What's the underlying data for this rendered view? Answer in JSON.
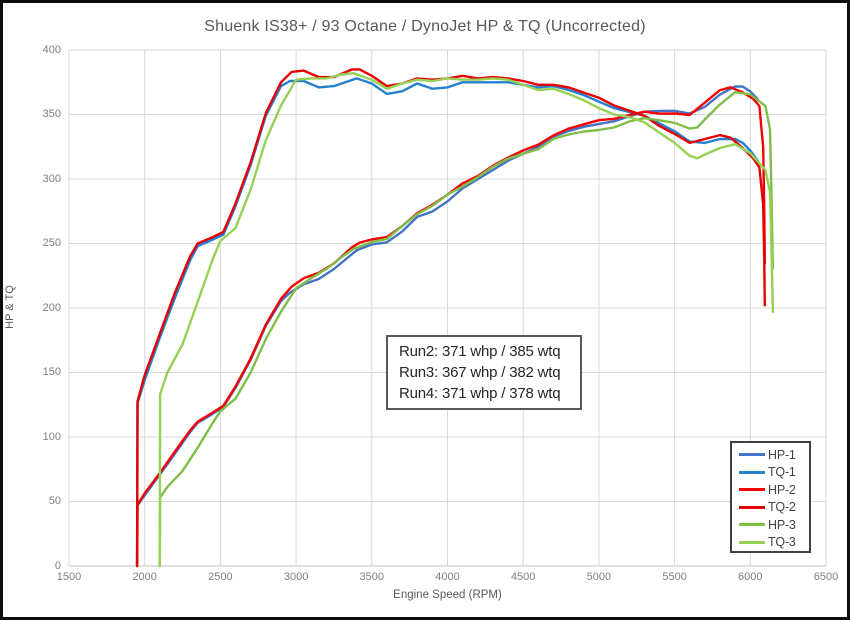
{
  "chart_data": {
    "type": "line",
    "title": "Shuenk IS38+ / 93 Octane / DynoJet HP & TQ (Uncorrected)",
    "xlabel": "Engine Speed (RPM)",
    "ylabel": "HP & TQ",
    "xlim": [
      1500,
      6500
    ],
    "ylim": [
      0,
      400
    ],
    "x_ticks": [
      1500,
      2000,
      2500,
      3000,
      3500,
      4000,
      4500,
      5000,
      5500,
      6000,
      6500
    ],
    "y_ticks": [
      0,
      50,
      100,
      150,
      200,
      250,
      300,
      350,
      400
    ],
    "grid": true,
    "grid_color": "#d9d9d9",
    "axis_line_color": "#c0c0c0",
    "legend_position": "inside-bottom-right",
    "annotations": [
      "Run2: 371 whp / 385 wtq",
      "Run3: 367 whp / 382 wtq",
      "Run4: 371 whp / 378 wtq"
    ],
    "series": [
      {
        "name": "HP-1",
        "color": "#4472C4",
        "points": [
          [
            1950,
            0
          ],
          [
            1952,
            46.8
          ],
          [
            2000,
            54.8
          ],
          [
            2100,
            70.8
          ],
          [
            2200,
            87.1
          ],
          [
            2300,
            103.8
          ],
          [
            2350,
            111.0
          ],
          [
            2450,
            118.0
          ],
          [
            2520,
            123.3
          ],
          [
            2600,
            138.1
          ],
          [
            2700,
            159.9
          ],
          [
            2800,
            186.1
          ],
          [
            2900,
            205.4
          ],
          [
            2960,
            211.9
          ],
          [
            3050,
            218.4
          ],
          [
            3150,
            222.5
          ],
          [
            3250,
            230.2
          ],
          [
            3400,
            244.7
          ],
          [
            3500,
            249.2
          ],
          [
            3600,
            250.9
          ],
          [
            3700,
            259.3
          ],
          [
            3800,
            270.6
          ],
          [
            3900,
            274.8
          ],
          [
            4000,
            282.6
          ],
          [
            4100,
            292.7
          ],
          [
            4200,
            299.9
          ],
          [
            4300,
            307.0
          ],
          [
            4400,
            314.2
          ],
          [
            4500,
            319.6
          ],
          [
            4600,
            325.0
          ],
          [
            4700,
            332.9
          ],
          [
            4800,
            337.2
          ],
          [
            4900,
            340.5
          ],
          [
            5000,
            342.7
          ],
          [
            5100,
            344.7
          ],
          [
            5200,
            348.5
          ],
          [
            5300,
            352.2
          ],
          [
            5400,
            352.7
          ],
          [
            5500,
            352.9
          ],
          [
            5600,
            350.8
          ],
          [
            5700,
            356.0
          ],
          [
            5800,
            365.5
          ],
          [
            5900,
            371.8
          ],
          [
            5950,
            371.6
          ],
          [
            6000,
            367.9
          ],
          [
            6050,
            361.7
          ]
        ]
      },
      {
        "name": "TQ-1",
        "color": "#2581CE",
        "points": [
          [
            1950,
            0
          ],
          [
            1952,
            126
          ],
          [
            2000,
            144
          ],
          [
            2100,
            177
          ],
          [
            2200,
            208
          ],
          [
            2300,
            237
          ],
          [
            2350,
            248
          ],
          [
            2450,
            253
          ],
          [
            2520,
            257
          ],
          [
            2600,
            279
          ],
          [
            2700,
            311
          ],
          [
            2800,
            349
          ],
          [
            2900,
            372
          ],
          [
            2960,
            376
          ],
          [
            3050,
            376
          ],
          [
            3150,
            371
          ],
          [
            3250,
            372
          ],
          [
            3400,
            378
          ],
          [
            3500,
            374
          ],
          [
            3600,
            366
          ],
          [
            3700,
            368
          ],
          [
            3800,
            374
          ],
          [
            3900,
            370
          ],
          [
            4000,
            371
          ],
          [
            4100,
            375
          ],
          [
            4200,
            375
          ],
          [
            4300,
            375
          ],
          [
            4400,
            375
          ],
          [
            4500,
            373
          ],
          [
            4600,
            371
          ],
          [
            4700,
            372
          ],
          [
            4800,
            369
          ],
          [
            4900,
            365
          ],
          [
            5000,
            360
          ],
          [
            5100,
            355
          ],
          [
            5200,
            352
          ],
          [
            5300,
            349
          ],
          [
            5400,
            343
          ],
          [
            5500,
            337
          ],
          [
            5600,
            329
          ],
          [
            5700,
            328
          ],
          [
            5800,
            331
          ],
          [
            5900,
            331
          ],
          [
            5950,
            328
          ],
          [
            6000,
            322
          ],
          [
            6050,
            314
          ]
        ]
      },
      {
        "name": "HP-2",
        "color": "#F60000",
        "points": [
          [
            1950,
            0
          ],
          [
            1953,
            47.6
          ],
          [
            2000,
            56.4
          ],
          [
            2100,
            72.0
          ],
          [
            2200,
            88.8
          ],
          [
            2300,
            105.1
          ],
          [
            2350,
            111.9
          ],
          [
            2450,
            119.0
          ],
          [
            2520,
            124.3
          ],
          [
            2600,
            139.1
          ],
          [
            2700,
            160.9
          ],
          [
            2800,
            187.1
          ],
          [
            2900,
            207.1
          ],
          [
            2970,
            216.6
          ],
          [
            3050,
            223.0
          ],
          [
            3150,
            227.3
          ],
          [
            3250,
            234.5
          ],
          [
            3370,
            247.1
          ],
          [
            3420,
            250.7
          ],
          [
            3500,
            253.2
          ],
          [
            3600,
            255.0
          ],
          [
            3700,
            263.5
          ],
          [
            3800,
            273.5
          ],
          [
            3900,
            280.0
          ],
          [
            4000,
            287.9
          ],
          [
            4100,
            296.6
          ],
          [
            4200,
            302.3
          ],
          [
            4300,
            310.3
          ],
          [
            4400,
            316.7
          ],
          [
            4500,
            322.2
          ],
          [
            4600,
            326.7
          ],
          [
            4700,
            333.8
          ],
          [
            4800,
            339.1
          ],
          [
            4900,
            342.4
          ],
          [
            5000,
            345.6
          ],
          [
            5100,
            346.7
          ],
          [
            5200,
            349.5
          ],
          [
            5300,
            352.2
          ],
          [
            5400,
            350.6
          ],
          [
            5500,
            350.8
          ],
          [
            5600,
            349.7
          ],
          [
            5700,
            359.2
          ],
          [
            5800,
            368.9
          ],
          [
            5870,
            371.1
          ],
          [
            5950,
            367.1
          ],
          [
            6020,
            362.2
          ],
          [
            6060,
            356.5
          ],
          [
            6085,
            324.4
          ],
          [
            6092,
            278.4
          ],
          [
            6096,
            234.5
          ]
        ]
      },
      {
        "name": "TQ-2",
        "color": "#E60000",
        "points": [
          [
            1950,
            0
          ],
          [
            1953,
            128
          ],
          [
            2000,
            148
          ],
          [
            2100,
            180
          ],
          [
            2200,
            212
          ],
          [
            2300,
            240
          ],
          [
            2350,
            250
          ],
          [
            2450,
            255
          ],
          [
            2520,
            259
          ],
          [
            2600,
            281
          ],
          [
            2700,
            313
          ],
          [
            2800,
            351
          ],
          [
            2900,
            375
          ],
          [
            2970,
            383
          ],
          [
            3050,
            384
          ],
          [
            3150,
            379
          ],
          [
            3250,
            379
          ],
          [
            3370,
            385
          ],
          [
            3420,
            385
          ],
          [
            3500,
            380
          ],
          [
            3600,
            372
          ],
          [
            3700,
            374
          ],
          [
            3800,
            378
          ],
          [
            3900,
            377
          ],
          [
            4000,
            378
          ],
          [
            4100,
            380
          ],
          [
            4200,
            378
          ],
          [
            4300,
            379
          ],
          [
            4400,
            378
          ],
          [
            4500,
            376
          ],
          [
            4600,
            373
          ],
          [
            4700,
            373
          ],
          [
            4800,
            371
          ],
          [
            4900,
            367
          ],
          [
            5000,
            363
          ],
          [
            5100,
            357
          ],
          [
            5200,
            353
          ],
          [
            5300,
            349
          ],
          [
            5400,
            341
          ],
          [
            5500,
            335
          ],
          [
            5600,
            328
          ],
          [
            5700,
            331
          ],
          [
            5800,
            334
          ],
          [
            5870,
            332
          ],
          [
            5950,
            324
          ],
          [
            6020,
            316
          ],
          [
            6060,
            309
          ],
          [
            6085,
            280
          ],
          [
            6092,
            240
          ],
          [
            6096,
            202
          ]
        ]
      },
      {
        "name": "HP-3",
        "color": "#7FBE48",
        "points": [
          [
            2100,
            0
          ],
          [
            2102,
            53.2
          ],
          [
            2150,
            61.4
          ],
          [
            2250,
            73.7
          ],
          [
            2350,
            91.7
          ],
          [
            2450,
            111.0
          ],
          [
            2500,
            120.0
          ],
          [
            2600,
            129.7
          ],
          [
            2700,
            150.1
          ],
          [
            2800,
            175.9
          ],
          [
            2900,
            197.1
          ],
          [
            3000,
            215.3
          ],
          [
            3100,
            223.1
          ],
          [
            3200,
            230.3
          ],
          [
            3300,
            239.4
          ],
          [
            3380,
            245.8
          ],
          [
            3500,
            251.2
          ],
          [
            3600,
            253.6
          ],
          [
            3700,
            263.5
          ],
          [
            3800,
            272.8
          ],
          [
            3900,
            279.2
          ],
          [
            4000,
            287.9
          ],
          [
            4100,
            294.3
          ],
          [
            4200,
            301.5
          ],
          [
            4300,
            309.5
          ],
          [
            4400,
            315.8
          ],
          [
            4500,
            319.6
          ],
          [
            4600,
            323.2
          ],
          [
            4700,
            331.1
          ],
          [
            4800,
            334.5
          ],
          [
            4900,
            336.8
          ],
          [
            5000,
            338.0
          ],
          [
            5100,
            339.9
          ],
          [
            5200,
            344.6
          ],
          [
            5300,
            347.1
          ],
          [
            5400,
            345.5
          ],
          [
            5500,
            343.5
          ],
          [
            5600,
            339.1
          ],
          [
            5650,
            340.0
          ],
          [
            5700,
            346.2
          ],
          [
            5800,
            357.8
          ],
          [
            5900,
            367.3
          ],
          [
            6000,
            365.6
          ],
          [
            6100,
            356.6
          ],
          [
            6130,
            338.5
          ],
          [
            6140,
            286.4
          ],
          [
            6149,
            230.7
          ]
        ]
      },
      {
        "name": "TQ-3",
        "color": "#95D155",
        "points": [
          [
            2100,
            0
          ],
          [
            2102,
            133
          ],
          [
            2150,
            150
          ],
          [
            2250,
            172
          ],
          [
            2350,
            205
          ],
          [
            2450,
            238
          ],
          [
            2500,
            252
          ],
          [
            2600,
            262
          ],
          [
            2700,
            292
          ],
          [
            2800,
            330
          ],
          [
            2900,
            357
          ],
          [
            3000,
            377
          ],
          [
            3100,
            378
          ],
          [
            3200,
            378
          ],
          [
            3300,
            381
          ],
          [
            3380,
            382
          ],
          [
            3500,
            377
          ],
          [
            3600,
            370
          ],
          [
            3700,
            374
          ],
          [
            3800,
            377
          ],
          [
            3900,
            376
          ],
          [
            4000,
            378
          ],
          [
            4100,
            377
          ],
          [
            4200,
            377
          ],
          [
            4300,
            378
          ],
          [
            4400,
            377
          ],
          [
            4500,
            373
          ],
          [
            4600,
            369
          ],
          [
            4700,
            370
          ],
          [
            4800,
            366
          ],
          [
            4900,
            361
          ],
          [
            5000,
            355
          ],
          [
            5100,
            350
          ],
          [
            5200,
            348
          ],
          [
            5300,
            344
          ],
          [
            5400,
            336
          ],
          [
            5500,
            328
          ],
          [
            5600,
            318
          ],
          [
            5650,
            316
          ],
          [
            5700,
            319
          ],
          [
            5800,
            324
          ],
          [
            5900,
            327
          ],
          [
            6000,
            320
          ],
          [
            6100,
            307
          ],
          [
            6130,
            290
          ],
          [
            6140,
            245
          ],
          [
            6149,
            197
          ]
        ]
      }
    ]
  }
}
